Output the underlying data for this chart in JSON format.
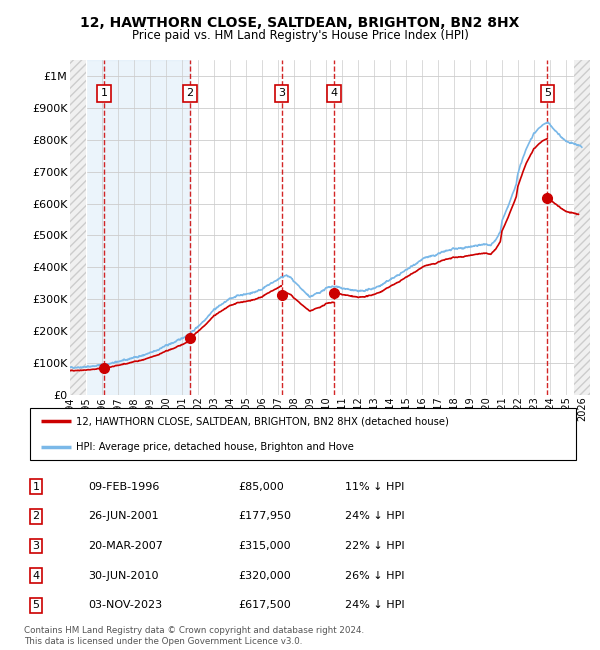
{
  "title1": "12, HAWTHORN CLOSE, SALTDEAN, BRIGHTON, BN2 8HX",
  "title2": "Price paid vs. HM Land Registry's House Price Index (HPI)",
  "xlim_start": 1994.0,
  "xlim_end": 2026.5,
  "ylim_min": 0,
  "ylim_max": 1050000,
  "yticks": [
    0,
    100000,
    200000,
    300000,
    400000,
    500000,
    600000,
    700000,
    800000,
    900000,
    1000000
  ],
  "ytick_labels": [
    "£0",
    "£100K",
    "£200K",
    "£300K",
    "£400K",
    "£500K",
    "£600K",
    "£700K",
    "£800K",
    "£900K",
    "£1M"
  ],
  "sale_dates": [
    1996.11,
    2001.49,
    2007.22,
    2010.5,
    2023.84
  ],
  "sale_prices": [
    85000,
    177950,
    315000,
    320000,
    617500
  ],
  "sale_labels": [
    "1",
    "2",
    "3",
    "4",
    "5"
  ],
  "hpi_color": "#7ab8e8",
  "price_color": "#cc0000",
  "legend_line1": "12, HAWTHORN CLOSE, SALTDEAN, BRIGHTON, BN2 8HX (detached house)",
  "legend_line2": "HPI: Average price, detached house, Brighton and Hove",
  "table_rows": [
    [
      "1",
      "09-FEB-1996",
      "£85,000",
      "11% ↓ HPI"
    ],
    [
      "2",
      "26-JUN-2001",
      "£177,950",
      "24% ↓ HPI"
    ],
    [
      "3",
      "20-MAR-2007",
      "£315,000",
      "22% ↓ HPI"
    ],
    [
      "4",
      "30-JUN-2010",
      "£320,000",
      "26% ↓ HPI"
    ],
    [
      "5",
      "03-NOV-2023",
      "£617,500",
      "24% ↓ HPI"
    ]
  ],
  "footnote1": "Contains HM Land Registry data © Crown copyright and database right 2024.",
  "footnote2": "This data is licensed under the Open Government Licence v3.0.",
  "blue_span_start": 1995.0,
  "blue_span_end": 2001.5,
  "hatch_left_end": 1995.0,
  "hatch_right_start": 2025.5
}
